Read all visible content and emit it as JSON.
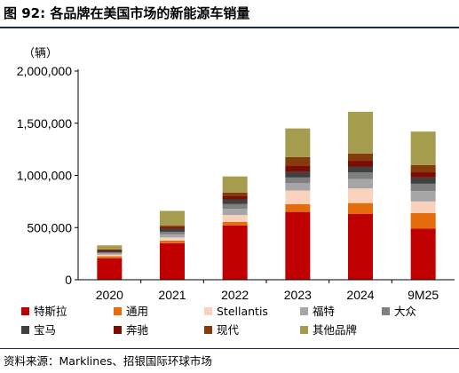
{
  "header": {
    "title": "图 92: 各品牌在美国市场的新能源车销量"
  },
  "footer": {
    "source": "资料来源：Marklines、招银国际环球市场"
  },
  "chart_data": {
    "type": "bar",
    "stacked": true,
    "unit_label": "（辆）",
    "categories": [
      "2020",
      "2021",
      "2022",
      "2023",
      "2024",
      "9M25"
    ],
    "y_ticks": [
      "0",
      "500,000",
      "1,000,000",
      "1,500,000",
      "2,000,000"
    ],
    "ylim": [
      0,
      2000000
    ],
    "grid": false,
    "legend_position": "bottom",
    "series": [
      {
        "name": "特斯拉",
        "color": "#C00000",
        "values": [
          205000,
          350000,
          520000,
          650000,
          630000,
          490000
        ]
      },
      {
        "name": "通用",
        "color": "#E46C0A",
        "values": [
          20000,
          25000,
          35000,
          75000,
          105000,
          150000
        ]
      },
      {
        "name": "Stellantis",
        "color": "#FAD2BC",
        "values": [
          15000,
          30000,
          65000,
          130000,
          140000,
          110000
        ]
      },
      {
        "name": "福特",
        "color": "#A6A6A6",
        "values": [
          12000,
          30000,
          60000,
          70000,
          90000,
          100000
        ]
      },
      {
        "name": "大众",
        "color": "#7F7F7F",
        "values": [
          10000,
          25000,
          45000,
          55000,
          65000,
          70000
        ]
      },
      {
        "name": "宝马",
        "color": "#404040",
        "values": [
          15000,
          30000,
          45000,
          55000,
          55000,
          60000
        ]
      },
      {
        "name": "奔驰",
        "color": "#7B0C00",
        "values": [
          8000,
          15000,
          30000,
          60000,
          55000,
          50000
        ]
      },
      {
        "name": "现代",
        "color": "#843C0C",
        "values": [
          5000,
          15000,
          35000,
          80000,
          70000,
          70000
        ]
      },
      {
        "name": "其他品牌",
        "color": "#A69C4E",
        "values": [
          40000,
          140000,
          155000,
          275000,
          400000,
          320000
        ]
      }
    ]
  }
}
